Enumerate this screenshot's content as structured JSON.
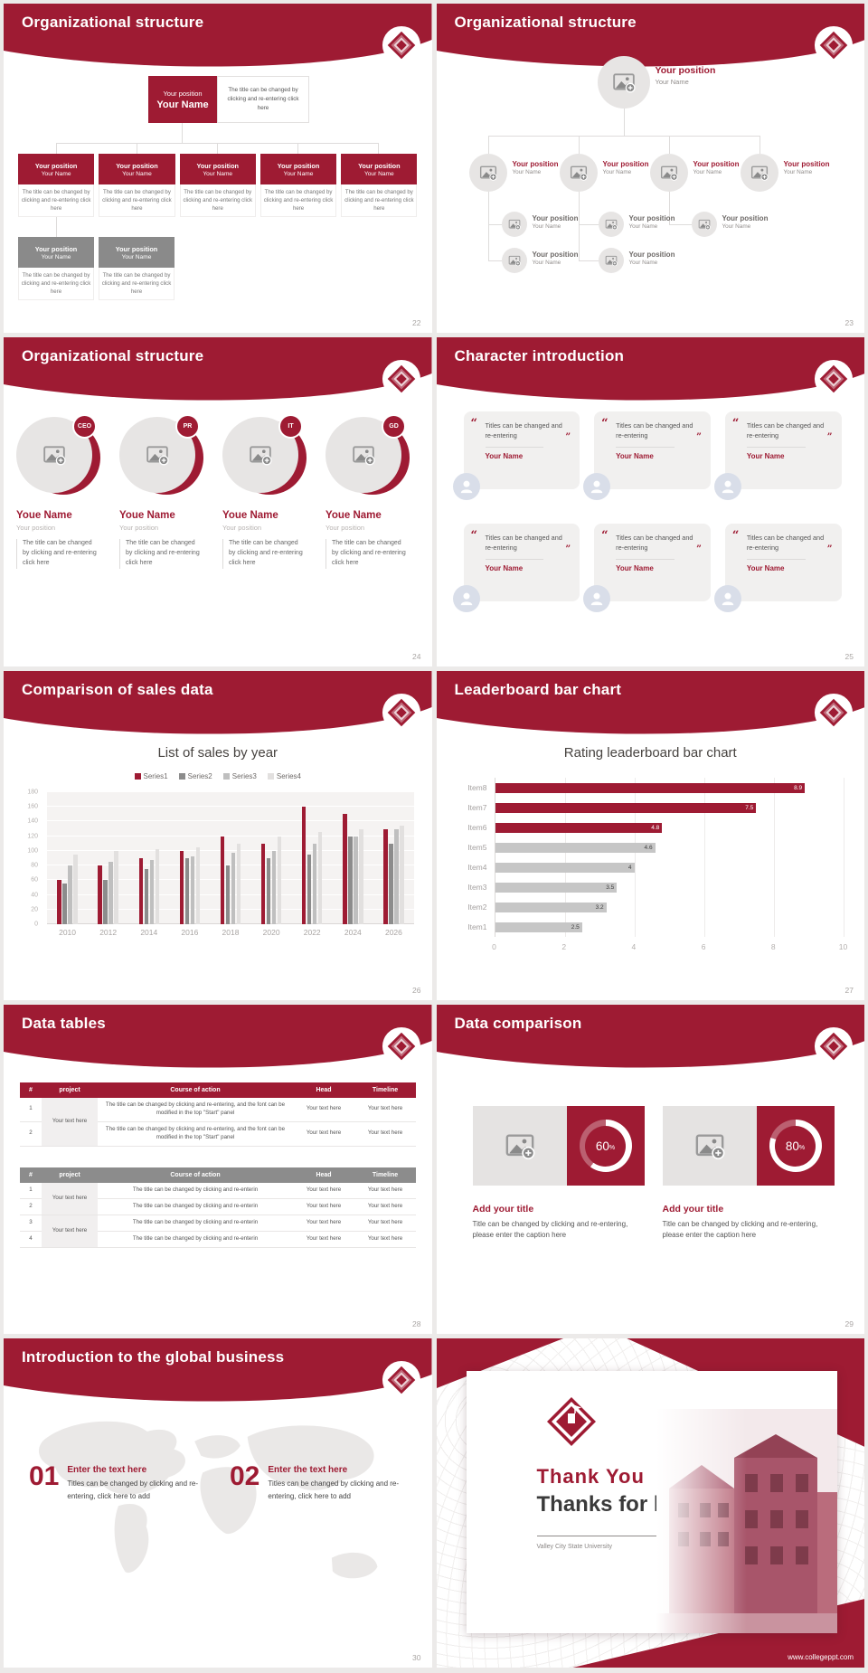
{
  "theme": {
    "maroon": "#9E1B33",
    "gray_box": "#8A8A8A",
    "light_circle": "#E7E5E4",
    "page_background": "#ECEAE9"
  },
  "common": {
    "position_label": "Your position",
    "name_label": "Your Name",
    "caption": "The title can be changed by clicking and re-entering click here",
    "open_quote": "“",
    "close_quote": "”",
    "percent_sign": "%"
  },
  "slide22": {
    "title": "Organizational structure",
    "page": "22",
    "root": {
      "position": "Your position",
      "name": "Your Name"
    },
    "root_note": "The title can be changed by clicking and re-entering click here",
    "level2": [
      {
        "position": "Your position",
        "name": "Your Name",
        "caption": "The title can be changed by clicking and re-entering click here"
      },
      {
        "position": "Your position",
        "name": "Your Name",
        "caption": "The title can be changed by clicking and re-entering click here"
      },
      {
        "position": "Your position",
        "name": "Your Name",
        "caption": "The title can be changed by clicking and re-entering click here"
      },
      {
        "position": "Your position",
        "name": "Your Name",
        "caption": "The title can be changed by clicking and re-entering click here"
      },
      {
        "position": "Your position",
        "name": "Your Name",
        "caption": "The title can be changed by clicking and re-entering click here"
      }
    ],
    "level3": [
      {
        "position": "Your position",
        "name": "Your Name",
        "caption": "The title can be changed by clicking and re-entering click here"
      },
      {
        "position": "Your position",
        "name": "Your Name",
        "caption": "The title can be changed by clicking and re-entering click here"
      }
    ]
  },
  "slide23": {
    "title": "Organizational structure",
    "page": "23",
    "root": {
      "position": "Your position",
      "name": "Your Name"
    },
    "level2": [
      {
        "position": "Your position",
        "name": "Your Name"
      },
      {
        "position": "Your position",
        "name": "Your Name"
      },
      {
        "position": "Your position",
        "name": "Your Name"
      },
      {
        "position": "Your position",
        "name": "Your Name"
      }
    ],
    "level3": [
      {
        "position": "Your position",
        "name": "Your Name"
      },
      {
        "position": "Your position",
        "name": "Your Name"
      },
      {
        "position": "Your position",
        "name": "Your Name"
      }
    ],
    "level4": [
      {
        "position": "Your position",
        "name": "Your Name"
      },
      {
        "position": "Your position",
        "name": "Your Name"
      }
    ]
  },
  "slide24": {
    "title": "Organizational structure",
    "page": "24",
    "people": [
      {
        "badge": "CEO",
        "name": "Youe Name",
        "position": "Your position",
        "caption": "The title can be changed by clicking and re-entering click here"
      },
      {
        "badge": "PR",
        "name": "Youe Name",
        "position": "Your position",
        "caption": "The title can be changed by clicking and re-entering click here"
      },
      {
        "badge": "IT",
        "name": "Youe Name",
        "position": "Your position",
        "caption": "The title can be changed by clicking and re-entering click here"
      },
      {
        "badge": "GD",
        "name": "Youe Name",
        "position": "Your position",
        "caption": "The title can be changed by clicking and re-entering click here"
      }
    ]
  },
  "slide25": {
    "title": "Character introduction",
    "page": "25",
    "cards": [
      {
        "quote": "Titles can be changed and re-entering",
        "name": "Your Name"
      },
      {
        "quote": "Titles can be changed and re-entering",
        "name": "Your Name"
      },
      {
        "quote": "Titles can be changed and re-entering",
        "name": "Your Name"
      },
      {
        "quote": "Titles can be changed and re-entering",
        "name": "Your Name"
      },
      {
        "quote": "Titles can be changed and re-entering",
        "name": "Your Name"
      },
      {
        "quote": "Titles can be changed and re-entering",
        "name": "Your Name"
      }
    ]
  },
  "slide26": {
    "title": "Comparison of sales data",
    "page": "26"
  },
  "slide27": {
    "title": "Leaderboard bar chart",
    "page": "27"
  },
  "slide28": {
    "title": "Data tables",
    "page": "28",
    "table1": {
      "headers": [
        "#",
        "project",
        "Course of action",
        "Head",
        "Timeline"
      ],
      "merged_project": "Your text here",
      "rows": [
        {
          "num": "1",
          "action": "The title can be changed by clicking and re-entering, and the font can be modified in the top \"Start\" panel",
          "head": "Your text here",
          "timeline": "Your text here"
        },
        {
          "num": "2",
          "action": "The title can be changed by clicking and re-entering, and the font can be modified in the top \"Start\" panel",
          "head": "Your text here",
          "timeline": "Your text here"
        }
      ]
    },
    "table2": {
      "headers": [
        "#",
        "project",
        "Course of action",
        "Head",
        "Timeline"
      ],
      "merged_project_a": "Your text here",
      "merged_project_b": "Your text here",
      "rows": [
        {
          "num": "1",
          "action": "The title can be changed by clicking and re-enterin",
          "head": "Your text here",
          "timeline": "Your text here"
        },
        {
          "num": "2",
          "action": "The title can be changed by clicking and re-enterin",
          "head": "Your text here",
          "timeline": "Your text here"
        },
        {
          "num": "3",
          "action": "The title can be changed by clicking and re-enterin",
          "head": "Your text here",
          "timeline": "Your text here"
        },
        {
          "num": "4",
          "action": "The title can be changed by clicking and re-enterin",
          "head": "Your text here",
          "timeline": "Your text here"
        }
      ]
    }
  },
  "slide29": {
    "title": "Data comparison",
    "page": "29",
    "items": [
      {
        "percent": 60,
        "value": "60",
        "title": "Add your title",
        "caption": "Title can be changed by clicking and re-entering, please enter the caption here"
      },
      {
        "percent": 80,
        "value": "80",
        "title": "Add your title",
        "caption": "Title can be changed by clicking and re-entering, please enter the caption here"
      }
    ]
  },
  "slide30": {
    "title": "Introduction to the global business",
    "page": "30",
    "points": [
      {
        "num": "01",
        "heading": "Enter the text here",
        "caption": "Titles can be changed by clicking and re-entering, click here to add"
      },
      {
        "num": "02",
        "heading": "Enter the text here",
        "caption": "Titles can be changed by clicking and re-entering, click here to add"
      }
    ]
  },
  "thanks": {
    "heading1": "Thank You !",
    "heading2": "Thanks for listening!",
    "org": "Valley City State University",
    "website": "www.collegeppt.com"
  },
  "chart_data": [
    {
      "type": "bar",
      "title": "List of sales by year",
      "categories": [
        "2010",
        "2012",
        "2014",
        "2016",
        "2018",
        "2020",
        "2022",
        "2024",
        "2026"
      ],
      "series": [
        {
          "name": "Series1",
          "color": "#9E1B33",
          "values": [
            60,
            80,
            90,
            100,
            120,
            110,
            160,
            150,
            130
          ]
        },
        {
          "name": "Series2",
          "color": "#8C8C8C",
          "values": [
            55,
            60,
            75,
            90,
            80,
            90,
            95,
            120,
            110
          ]
        },
        {
          "name": "Series3",
          "color": "#BFBFBF",
          "values": [
            80,
            85,
            88,
            92,
            98,
            100,
            110,
            120,
            130
          ]
        },
        {
          "name": "Series4",
          "color": "#E2E0DF",
          "values": [
            95,
            100,
            102,
            105,
            110,
            120,
            126,
            130,
            135
          ]
        }
      ],
      "xlabel": "",
      "ylabel": "",
      "ylim": [
        0,
        180
      ],
      "ytick_step": 20,
      "grid": true,
      "legend_position": "top"
    },
    {
      "type": "bar",
      "orientation": "horizontal",
      "title": "Rating leaderboard bar chart",
      "categories": [
        "Item8",
        "Item7",
        "Item6",
        "Item5",
        "Item4",
        "Item3",
        "Item2",
        "Item1"
      ],
      "values": [
        8.9,
        7.5,
        4.8,
        4.6,
        4,
        3.5,
        3.2,
        2.5
      ],
      "colors": [
        "#9E1B33",
        "#9E1B33",
        "#9E1B33",
        "#C6C6C6",
        "#C6C6C6",
        "#C6C6C6",
        "#C6C6C6",
        "#C6C6C6"
      ],
      "xlim": [
        0,
        10
      ],
      "xticks": [
        0,
        2,
        4,
        6,
        8,
        10
      ],
      "grid": true
    }
  ]
}
